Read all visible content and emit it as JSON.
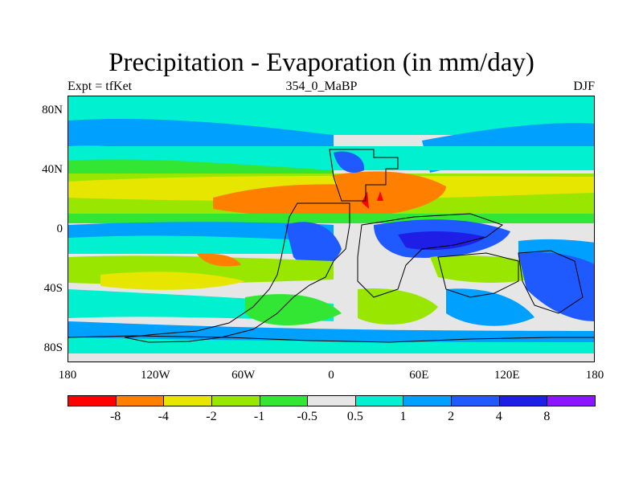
{
  "title": "Precipitation - Evaporation (in mm/day)",
  "left_subtitle": "Expt = tfKet",
  "center_subtitle": "354_0_MaBP",
  "right_subtitle": "DJF",
  "map": {
    "projection": "cylindrical equidistant",
    "lon_range": [
      -180,
      180
    ],
    "lat_range": [
      -90,
      90
    ],
    "y_ticks": [
      {
        "lat": 80,
        "label": "80N"
      },
      {
        "lat": 40,
        "label": "40N"
      },
      {
        "lat": 0,
        "label": "0"
      },
      {
        "lat": -40,
        "label": "40S"
      },
      {
        "lat": -80,
        "label": "80S"
      }
    ],
    "x_ticks": [
      {
        "lon": -180,
        "label": "180"
      },
      {
        "lon": -120,
        "label": "120W"
      },
      {
        "lon": -60,
        "label": "60W"
      },
      {
        "lon": 0,
        "label": "0"
      },
      {
        "lon": 60,
        "label": "60E"
      },
      {
        "lon": 120,
        "label": "120E"
      },
      {
        "lon": 180,
        "label": "180"
      }
    ]
  },
  "colorbar": {
    "colors": [
      "#ff0000",
      "#ff8000",
      "#e6e600",
      "#99e600",
      "#33e633",
      "#e6e6e6",
      "#00f0d0",
      "#00a0ff",
      "#1e5aff",
      "#1e1ee6",
      "#8c14ff"
    ],
    "labels": [
      "-8",
      "-4",
      "-2",
      "-1",
      "-0.5",
      "0.5",
      "1",
      "2",
      "4",
      "8"
    ]
  }
}
